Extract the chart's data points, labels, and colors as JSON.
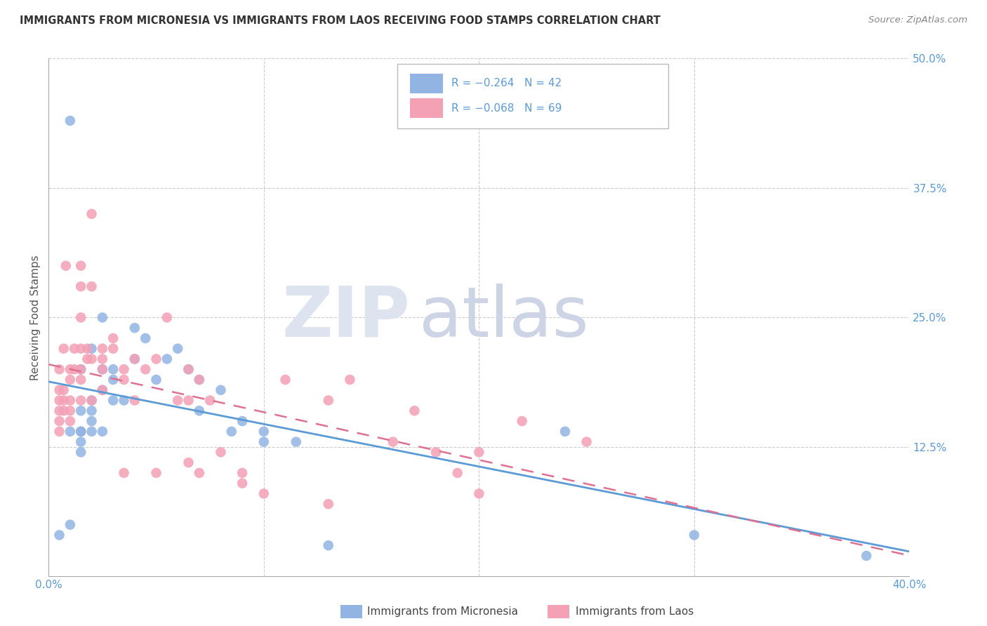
{
  "title": "IMMIGRANTS FROM MICRONESIA VS IMMIGRANTS FROM LAOS RECEIVING FOOD STAMPS CORRELATION CHART",
  "source": "Source: ZipAtlas.com",
  "ylabel": "Receiving Food Stamps",
  "xlim": [
    0.0,
    0.4
  ],
  "ylim": [
    0.0,
    0.5
  ],
  "legend_R_blue": "-0.264",
  "legend_N_blue": "42",
  "legend_R_pink": "-0.068",
  "legend_N_pink": "69",
  "label_blue": "Immigrants from Micronesia",
  "label_pink": "Immigrants from Laos",
  "color_blue": "#92b4e3",
  "color_pink": "#f4a0b5",
  "line_blue": "#5b9bd5",
  "line_pink": "#e07090",
  "blue_x": [
    0.005,
    0.01,
    0.01,
    0.01,
    0.015,
    0.015,
    0.015,
    0.015,
    0.015,
    0.015,
    0.02,
    0.02,
    0.02,
    0.02,
    0.02,
    0.025,
    0.025,
    0.025,
    0.025,
    0.03,
    0.03,
    0.03,
    0.035,
    0.04,
    0.04,
    0.045,
    0.05,
    0.055,
    0.06,
    0.065,
    0.07,
    0.07,
    0.08,
    0.085,
    0.09,
    0.1,
    0.1,
    0.115,
    0.13,
    0.24,
    0.3,
    0.38
  ],
  "blue_y": [
    0.04,
    0.44,
    0.14,
    0.05,
    0.2,
    0.16,
    0.14,
    0.14,
    0.13,
    0.12,
    0.22,
    0.17,
    0.16,
    0.15,
    0.14,
    0.25,
    0.2,
    0.18,
    0.14,
    0.2,
    0.19,
    0.17,
    0.17,
    0.24,
    0.21,
    0.23,
    0.19,
    0.21,
    0.22,
    0.2,
    0.19,
    0.16,
    0.18,
    0.14,
    0.15,
    0.14,
    0.13,
    0.13,
    0.03,
    0.14,
    0.04,
    0.02
  ],
  "pink_x": [
    0.005,
    0.005,
    0.005,
    0.005,
    0.005,
    0.005,
    0.007,
    0.007,
    0.007,
    0.007,
    0.008,
    0.01,
    0.01,
    0.01,
    0.01,
    0.01,
    0.012,
    0.012,
    0.015,
    0.015,
    0.015,
    0.015,
    0.015,
    0.015,
    0.015,
    0.018,
    0.018,
    0.02,
    0.02,
    0.02,
    0.02,
    0.025,
    0.025,
    0.025,
    0.025,
    0.03,
    0.03,
    0.035,
    0.035,
    0.035,
    0.04,
    0.04,
    0.045,
    0.05,
    0.05,
    0.055,
    0.06,
    0.065,
    0.065,
    0.065,
    0.07,
    0.07,
    0.075,
    0.08,
    0.09,
    0.09,
    0.1,
    0.11,
    0.13,
    0.13,
    0.14,
    0.16,
    0.17,
    0.18,
    0.19,
    0.2,
    0.2,
    0.22,
    0.25
  ],
  "pink_y": [
    0.2,
    0.18,
    0.17,
    0.16,
    0.15,
    0.14,
    0.22,
    0.18,
    0.17,
    0.16,
    0.3,
    0.2,
    0.19,
    0.17,
    0.16,
    0.15,
    0.22,
    0.2,
    0.3,
    0.28,
    0.25,
    0.22,
    0.2,
    0.19,
    0.17,
    0.22,
    0.21,
    0.35,
    0.28,
    0.21,
    0.17,
    0.22,
    0.21,
    0.2,
    0.18,
    0.23,
    0.22,
    0.2,
    0.19,
    0.1,
    0.21,
    0.17,
    0.2,
    0.21,
    0.1,
    0.25,
    0.17,
    0.2,
    0.17,
    0.11,
    0.19,
    0.1,
    0.17,
    0.12,
    0.1,
    0.09,
    0.08,
    0.19,
    0.17,
    0.07,
    0.19,
    0.13,
    0.16,
    0.12,
    0.1,
    0.12,
    0.08,
    0.15,
    0.13
  ]
}
